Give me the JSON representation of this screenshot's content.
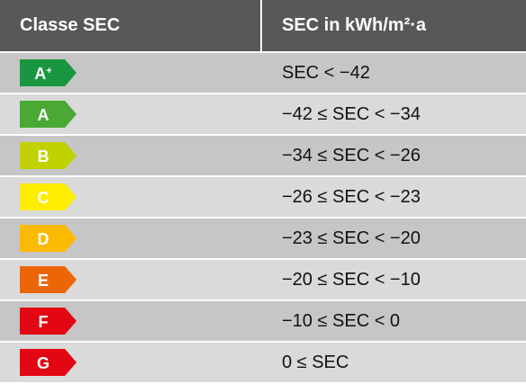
{
  "header": {
    "class_title": "Classe SEC",
    "range_title": "SEC in kWh/m²·a"
  },
  "rows": [
    {
      "class": "A",
      "sup": "+",
      "color": "#1a9640",
      "range": "SEC < −42"
    },
    {
      "class": "A",
      "color": "#4aa834",
      "range": "−42 ≤ SEC < −34"
    },
    {
      "class": "B",
      "color": "#c1d200",
      "range": "−34 ≤ SEC < −26"
    },
    {
      "class": "C",
      "color": "#ffed00",
      "range": "−26 ≤ SEC < −23"
    },
    {
      "class": "D",
      "color": "#fbba00",
      "range": "−23 ≤ SEC < −20"
    },
    {
      "class": "E",
      "color": "#ec6608",
      "range": "−20 ≤ SEC < −10"
    },
    {
      "class": "F",
      "color": "#e30613",
      "range": "−10 ≤ SEC < 0"
    },
    {
      "class": "G",
      "color": "#e30613",
      "range": "0 ≤ SEC"
    }
  ]
}
